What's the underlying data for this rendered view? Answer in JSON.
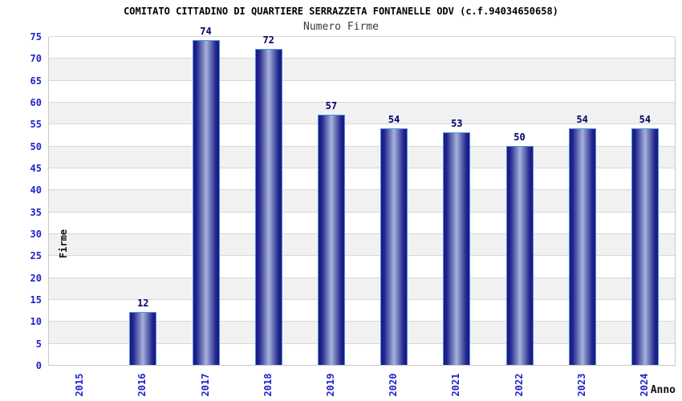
{
  "header": {
    "title": "COMITATO CITTADINO DI QUARTIERE SERRAZZETA FONTANELLE ODV (c.f.94034650658)",
    "subtitle": "Numero Firme"
  },
  "chart_data": {
    "type": "bar",
    "title": "COMITATO CITTADINO DI QUARTIERE SERRAZZETA FONTANELLE ODV (c.f.94034650658)",
    "subtitle": "Numero Firme",
    "categories": [
      "2015",
      "2016",
      "2017",
      "2018",
      "2019",
      "2020",
      "2021",
      "2022",
      "2023",
      "2024"
    ],
    "values": [
      0,
      12,
      74,
      72,
      57,
      54,
      53,
      50,
      54,
      54
    ],
    "xlabel": "Anno",
    "ylabel": "Firme",
    "ylim": [
      0,
      75
    ],
    "ytick_step": 5,
    "grid": true,
    "legend": "none",
    "bands_alternating": true,
    "bar_labels_shown": [
      null,
      "12",
      "74",
      "72",
      "57",
      "54",
      "53",
      "50",
      "54",
      "54"
    ],
    "colors": {
      "bar_edge": "#191980",
      "bar_center": "#a9b2dc",
      "bar_border": "#4a96e2",
      "tick_label": "#2222cc",
      "value_label": "#00006b",
      "band_gray": "#f1f1f1",
      "band_white": "#ffffff",
      "gridline": "#d8d8d8",
      "plot_border": "#c9c9c9",
      "title": "#000000",
      "subtitle": "#3a3a3a",
      "axis_title": "#111111"
    }
  }
}
